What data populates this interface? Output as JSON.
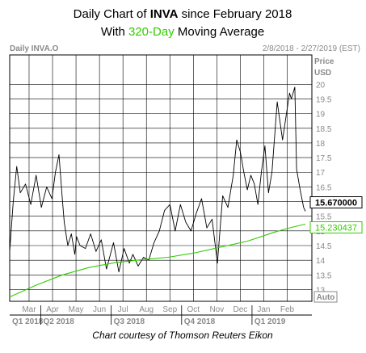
{
  "header": {
    "line1_prefix": "Daily Chart of ",
    "line1_ticker": "INVA",
    "line1_suffix": " since February 2018",
    "line2_prefix": "With ",
    "line2_highlight": "320-Day",
    "line2_suffix": " Moving Average"
  },
  "panel": {
    "label": "Daily INVA.O",
    "date_range": "2/8/2018 - 2/27/2019 (EST)",
    "price_unit_line1": "Price",
    "price_unit_line2": "USD",
    "auto_button": "Auto",
    "credit": "Chart courtesy of Thomson Reuters Eikon"
  },
  "colors": {
    "price_line": "#000000",
    "moving_average": "#33cc00",
    "highlight_text": "#33cc00",
    "grid": "#000000",
    "panel_text": "#8a8a8a",
    "label_bg_price": "#ffffff",
    "label_bg_ma": "#ffffff"
  },
  "chart_data": {
    "type": "line",
    "title": "Daily Chart of INVA since February 2018",
    "subtitle": "With 320-Day Moving Average",
    "ylabel": "Price USD",
    "ylim": [
      12.6,
      21.0
    ],
    "yticks": [
      13,
      13.5,
      14,
      14.5,
      15,
      15.5,
      16,
      16.5,
      17,
      17.5,
      18,
      18.5,
      19,
      19.5,
      20
    ],
    "month_labels": [
      "Mar",
      "Apr",
      "May",
      "Jun",
      "Jul",
      "Aug",
      "Sep",
      "Oct",
      "Nov",
      "Dec",
      "Jan",
      "Feb"
    ],
    "quarter_labels": [
      "Q1 2018",
      "Q2 2018",
      "Q3 2018",
      "Q4 2018",
      "Q1 2019"
    ],
    "last_price_label": "15.670000",
    "last_ma_label": "15.230437",
    "grid": true,
    "series": [
      {
        "kind": "price",
        "x": [
          0,
          4,
          8,
          12,
          18,
          24,
          30,
          36,
          42,
          48,
          52,
          56,
          60,
          62,
          66,
          70,
          74,
          76,
          80,
          86,
          92,
          98,
          104,
          110,
          118,
          124,
          130,
          136,
          140,
          146,
          152,
          158,
          164,
          170,
          176,
          182,
          188,
          194,
          200,
          206,
          212,
          218,
          224,
          230,
          236,
          242,
          248,
          254,
          258,
          262,
          266,
          270,
          274,
          278,
          282,
          286,
          290,
          294,
          298,
          304,
          310,
          314,
          318,
          320,
          324,
          326,
          330,
          334,
          336
        ],
        "values": [
          14.3,
          16.0,
          17.2,
          16.3,
          16.6,
          15.9,
          16.9,
          15.8,
          16.5,
          16.1,
          17.0,
          17.6,
          16.0,
          15.3,
          14.5,
          14.9,
          14.2,
          14.8,
          14.5,
          14.4,
          14.9,
          14.3,
          14.7,
          13.7,
          14.6,
          13.6,
          14.4,
          13.9,
          14.2,
          13.8,
          14.1,
          14.0,
          14.6,
          15.0,
          15.7,
          15.9,
          15.0,
          15.9,
          15.3,
          15.0,
          15.6,
          16.1,
          15.1,
          15.4,
          13.9,
          16.2,
          15.8,
          16.9,
          18.1,
          17.7,
          17.0,
          16.4,
          16.9,
          16.6,
          15.9,
          17.0,
          17.9,
          16.3,
          17.0,
          19.4,
          18.1,
          18.9,
          19.7,
          19.5,
          19.9,
          17.1,
          16.4,
          15.8,
          15.67
        ]
      },
      {
        "kind": "moving_average",
        "x": [
          0,
          30,
          60,
          90,
          120,
          150,
          180,
          210,
          240,
          270,
          300,
          320,
          336
        ],
        "values": [
          12.75,
          13.15,
          13.5,
          13.75,
          13.92,
          14.02,
          14.1,
          14.25,
          14.45,
          14.65,
          14.95,
          15.12,
          15.23
        ]
      }
    ]
  }
}
